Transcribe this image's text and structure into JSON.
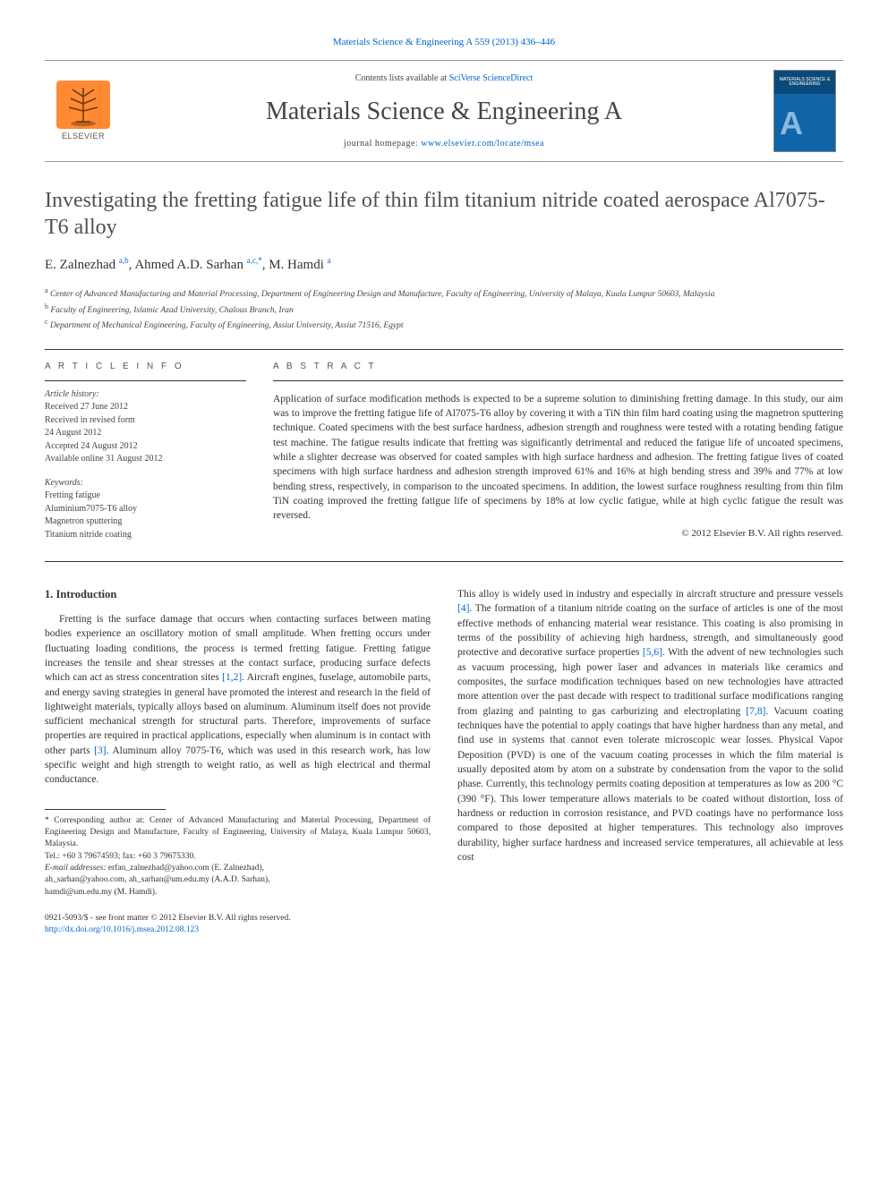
{
  "header": {
    "top_link_text": "Materials Science & Engineering A 559 (2013) 436–446",
    "contents_prefix": "Contents lists available at ",
    "contents_link": "SciVerse ScienceDirect",
    "journal_name": "Materials Science & Engineering A",
    "homepage_prefix": "journal homepage: ",
    "homepage_link": "www.elsevier.com/locate/msea",
    "publisher_label": "ELSEVIER",
    "cover_text": "MATERIALS SCIENCE & ENGINEERING"
  },
  "article": {
    "title": "Investigating the fretting fatigue life of thin film titanium nitride coated aerospace Al7075-T6 alloy",
    "authors_html": "E. Zalnezhad <sup>a,b</sup>, Ahmed A.D. Sarhan <sup>a,c,</sup>*, M. Hamdi <sup>a</sup>",
    "affiliations": {
      "a": "Center of Advanced Manufacturing and Material Processing, Department of Engineering Design and Manufacture, Faculty of Engineering, University of Malaya, Kuala Lumpur 50603, Malaysia",
      "b": "Faculty of Engineering, Islamic Azad University, Chalous Branch, Iran",
      "c": "Department of Mechanical Engineering, Faculty of Engineering, Assiut University, Assiut 71516, Egypt"
    }
  },
  "info": {
    "header": "A R T I C L E  I N F O",
    "history_label": "Article history:",
    "received": "Received 27 June 2012",
    "revised_l1": "Received in revised form",
    "revised_l2": "24 August 2012",
    "accepted": "Accepted 24 August 2012",
    "online": "Available online 31 August 2012",
    "keywords_label": "Keywords:",
    "kw1": "Fretting fatigue",
    "kw2": "Aluminium7075-T6 alloy",
    "kw3": "Magnetron sputtering",
    "kw4": "Titanium nitride coating"
  },
  "abstract": {
    "header": "A B S T R A C T",
    "text": "Application of surface modification methods is expected to be a supreme solution to diminishing fretting damage. In this study, our aim was to improve the fretting fatigue life of Al7075-T6 alloy by covering it with a TiN thin film hard coating using the magnetron sputtering technique. Coated specimens with the best surface hardness, adhesion strength and roughness were tested with a rotating bending fatigue test machine. The fatigue results indicate that fretting was significantly detrimental and reduced the fatigue life of uncoated specimens, while a slighter decrease was observed for coated samples with high surface hardness and adhesion. The fretting fatigue lives of coated specimens with high surface hardness and adhesion strength improved 61% and 16% at high bending stress and 39% and 77% at low bending stress, respectively, in comparison to the uncoated specimens. In addition, the lowest surface roughness resulting from thin film TiN coating improved the fretting fatigue life of specimens by 18% at low cyclic fatigue, while at high cyclic fatigue the result was reversed.",
    "copyright": "© 2012 Elsevier B.V. All rights reserved."
  },
  "body": {
    "intro_heading": "1.  Introduction",
    "col1_p1": "Fretting is the surface damage that occurs when contacting surfaces between mating bodies experience an oscillatory motion of small amplitude. When fretting occurs under fluctuating loading conditions, the process is termed fretting fatigue. Fretting fatigue increases the tensile and shear stresses at the contact surface, producing surface defects which can act as stress concentration sites [1,2]. Aircraft engines, fuselage, automobile parts, and energy saving strategies in general have promoted the interest and research in the field of lightweight materials, typically alloys based on aluminum. Aluminum itself does not provide sufficient mechanical strength for structural parts. Therefore, improvements of surface properties are required in practical applications, especially when aluminum is in contact with other parts [3]. Aluminum alloy 7075-T6, which was used in this research work, has low specific weight and high strength to weight ratio, as well as high electrical and thermal conductance.",
    "col2_p1": "This alloy is widely used in industry and especially in aircraft structure and pressure vessels [4]. The formation of a titanium nitride coating on the surface of articles is one of the most effective methods of enhancing material wear resistance. This coating is also promising in terms of the possibility of achieving high hardness, strength, and simultaneously good protective and decorative surface properties [5,6]. With the advent of new technologies such as vacuum processing, high power laser and advances in materials like ceramics and composites, the surface modification techniques based on new technologies have attracted more attention over the past decade with respect to traditional surface modifications ranging from glazing and painting to gas carburizing and electroplating [7,8]. Vacuum coating techniques have the potential to apply coatings that have higher hardness than any metal, and find use in systems that cannot even tolerate microscopic wear losses. Physical Vapor Deposition (PVD) is one of the vacuum coating processes in which the film material is usually deposited atom by atom on a substrate by condensation from the vapor to the solid phase. Currently, this technology permits coating deposition at temperatures as low as 200 °C (390 °F). This lower temperature allows materials to be coated without distortion, loss of hardness or reduction in corrosion resistance, and PVD coatings have no performance loss compared to those deposited at higher temperatures. This technology also improves durability, higher surface hardness and increased service temperatures, all achievable at less cost"
  },
  "footnotes": {
    "corr": "* Corresponding author at: Center of Advanced Manufacturing and Material Processing, Department of Engineering Design and Manufacture, Faculty of Engineering, University of Malaya, Kuala Lumpur 50603, Malaysia.",
    "tel": "Tel.: +60 3 79674593; fax: +60 3 79675330.",
    "email_label": "E-mail addresses: ",
    "email1": "erfan_zalnezhad@yahoo.com (E. Zalnezhad),",
    "email2": "ah_sarhan@yahoo.com, ah_sarhan@um.edu.my (A.A.D. Sarhan),",
    "email3": "hamdi@um.edu.my (M. Hamdi)."
  },
  "bottom": {
    "issn": "0921-5093/$ - see front matter © 2012 Elsevier B.V. All rights reserved.",
    "doi": "http://dx.doi.org/10.1016/j.msea.2012.08.123"
  },
  "colors": {
    "link": "#0066cc",
    "text": "#333333",
    "elsevier_orange": "#ff8a33",
    "cover_blue": "#1065a8"
  }
}
